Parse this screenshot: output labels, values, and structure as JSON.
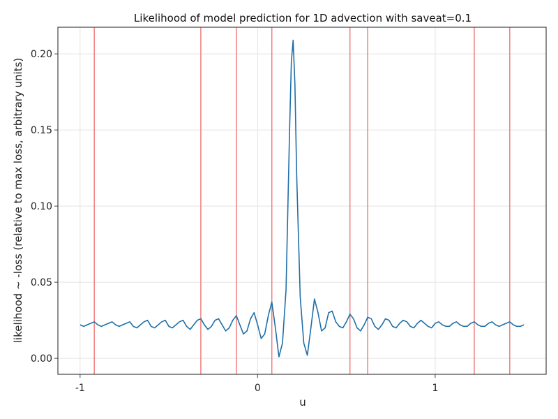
{
  "chart_data": {
    "type": "line",
    "title": "Likelihood of model prediction for 1D advection with saveat=0.1",
    "xlabel": "u",
    "ylabel": "likelihood ~ -loss (relative to max loss, arbitrary units)",
    "xlim": [
      -1.125,
      1.625
    ],
    "ylim": [
      -0.0105,
      0.2175
    ],
    "xticks": [
      -1,
      0,
      1
    ],
    "xtick_labels": [
      "-1",
      "0",
      "1"
    ],
    "yticks": [
      0.0,
      0.05,
      0.1,
      0.15,
      0.2
    ],
    "ytick_labels": [
      "0.00",
      "0.05",
      "0.10",
      "0.15",
      "0.20"
    ],
    "grid": true,
    "legend": "none",
    "vertical_lines": [
      -0.92,
      -0.32,
      -0.12,
      0.08,
      0.52,
      0.62,
      1.22,
      1.42
    ],
    "series": [
      {
        "x": [
          -1.0,
          -0.98,
          -0.96,
          -0.94,
          -0.92,
          -0.9,
          -0.88,
          -0.86,
          -0.84,
          -0.82,
          -0.8,
          -0.78,
          -0.76,
          -0.74,
          -0.72,
          -0.7,
          -0.68,
          -0.66,
          -0.64,
          -0.62,
          -0.6,
          -0.58,
          -0.56,
          -0.54,
          -0.52,
          -0.5,
          -0.48,
          -0.46,
          -0.44,
          -0.42,
          -0.4,
          -0.38,
          -0.36,
          -0.34,
          -0.32,
          -0.3,
          -0.28,
          -0.26,
          -0.24,
          -0.22,
          -0.2,
          -0.18,
          -0.16,
          -0.14,
          -0.12,
          -0.1,
          -0.08,
          -0.06,
          -0.04,
          -0.02,
          0.0,
          0.02,
          0.04,
          0.06,
          0.08,
          0.1,
          0.12,
          0.14,
          0.16,
          0.18,
          0.19,
          0.2,
          0.21,
          0.22,
          0.24,
          0.26,
          0.28,
          0.3,
          0.32,
          0.34,
          0.36,
          0.38,
          0.4,
          0.42,
          0.44,
          0.46,
          0.48,
          0.5,
          0.52,
          0.54,
          0.56,
          0.58,
          0.6,
          0.62,
          0.64,
          0.66,
          0.68,
          0.7,
          0.72,
          0.74,
          0.76,
          0.78,
          0.8,
          0.82,
          0.84,
          0.86,
          0.88,
          0.9,
          0.92,
          0.94,
          0.96,
          0.98,
          1.0,
          1.02,
          1.04,
          1.06,
          1.08,
          1.1,
          1.12,
          1.14,
          1.16,
          1.18,
          1.2,
          1.22,
          1.24,
          1.26,
          1.28,
          1.3,
          1.32,
          1.34,
          1.36,
          1.38,
          1.4,
          1.42,
          1.44,
          1.46,
          1.48,
          1.5
        ],
        "y": [
          0.022,
          0.021,
          0.022,
          0.023,
          0.024,
          0.022,
          0.021,
          0.022,
          0.023,
          0.024,
          0.022,
          0.021,
          0.022,
          0.023,
          0.024,
          0.021,
          0.02,
          0.022,
          0.024,
          0.025,
          0.021,
          0.02,
          0.022,
          0.024,
          0.025,
          0.021,
          0.02,
          0.022,
          0.024,
          0.025,
          0.021,
          0.019,
          0.022,
          0.025,
          0.026,
          0.022,
          0.019,
          0.021,
          0.025,
          0.026,
          0.022,
          0.018,
          0.02,
          0.025,
          0.028,
          0.022,
          0.016,
          0.018,
          0.026,
          0.03,
          0.022,
          0.013,
          0.016,
          0.028,
          0.037,
          0.02,
          0.001,
          0.01,
          0.045,
          0.15,
          0.195,
          0.209,
          0.18,
          0.12,
          0.04,
          0.01,
          0.002,
          0.02,
          0.039,
          0.03,
          0.018,
          0.02,
          0.03,
          0.031,
          0.024,
          0.021,
          0.02,
          0.024,
          0.029,
          0.026,
          0.02,
          0.018,
          0.022,
          0.027,
          0.026,
          0.021,
          0.019,
          0.022,
          0.026,
          0.025,
          0.021,
          0.02,
          0.023,
          0.025,
          0.024,
          0.021,
          0.02,
          0.023,
          0.025,
          0.023,
          0.021,
          0.02,
          0.023,
          0.024,
          0.022,
          0.021,
          0.021,
          0.023,
          0.024,
          0.022,
          0.021,
          0.021,
          0.023,
          0.024,
          0.022,
          0.021,
          0.021,
          0.023,
          0.024,
          0.022,
          0.021,
          0.022,
          0.023,
          0.024,
          0.022,
          0.021,
          0.021,
          0.022
        ]
      }
    ],
    "colors": {
      "line": "#1f6fa8",
      "vlines": "#f07f7f",
      "grid": "#e4e4e4",
      "frame": "#444444"
    }
  }
}
